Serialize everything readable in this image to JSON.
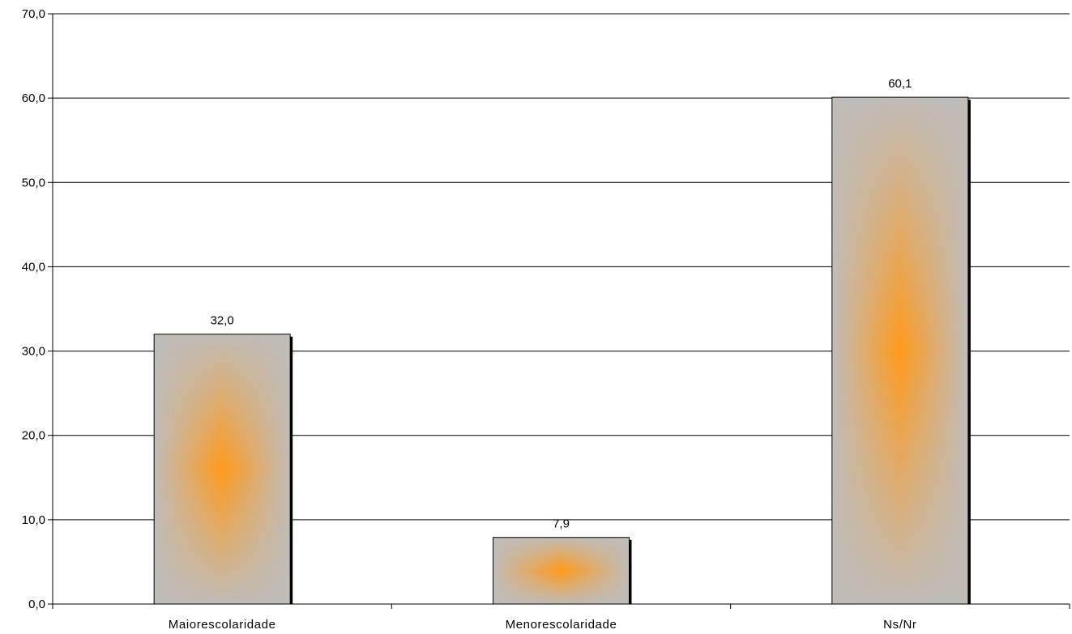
{
  "chart_data": {
    "type": "bar",
    "title": "",
    "xlabel": "",
    "ylabel": "",
    "categories": [
      "Maiorescolaridade",
      "Menorescolaridade",
      "Ns/Nr"
    ],
    "values": [
      32.0,
      7.9,
      60.1
    ],
    "value_labels": [
      "32,0",
      "7,9",
      "60,1"
    ],
    "ylim": [
      0,
      70
    ],
    "yticks": [
      0,
      10,
      20,
      30,
      40,
      50,
      60,
      70
    ],
    "ytick_labels": [
      "0,0",
      "10,0",
      "20,0",
      "30,0",
      "40,0",
      "50,0",
      "60,0",
      "70,0"
    ],
    "grid": true,
    "legend": "none",
    "colors": {
      "bar_edge": "#c0bcb8",
      "bar_center": "#ff9a1a",
      "bar_outline": "#000000",
      "gridline": "#000000",
      "axis": "#000000"
    }
  }
}
